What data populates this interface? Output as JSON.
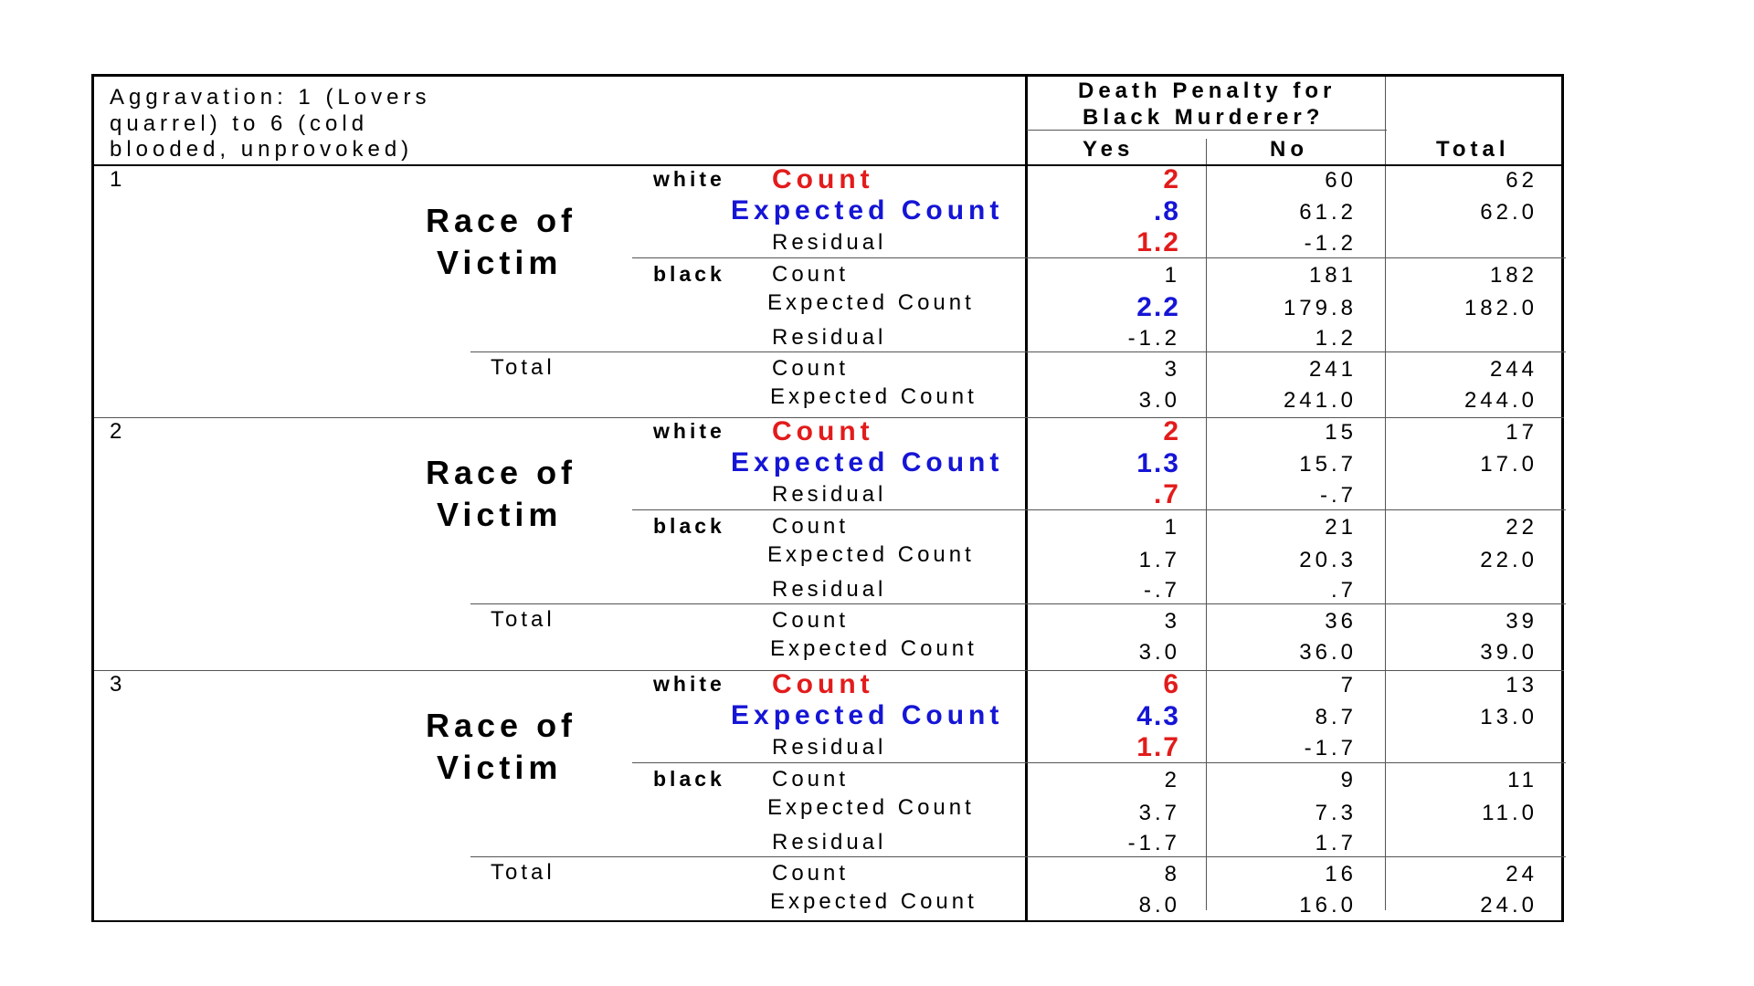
{
  "header": {
    "title_lines": [
      "Aggravation: 1 (Lovers",
      "quarrel) to 6 (cold",
      "blooded, unprovoked)"
    ],
    "group_lines": [
      "Death Penalty for",
      "Black Murderer?"
    ],
    "col_yes": "Yes",
    "col_no": "No",
    "col_total": "Total"
  },
  "labels": {
    "race_of": "Race of",
    "victim": "Victim",
    "white": "white",
    "black": "black",
    "total": "Total",
    "count": "Count",
    "expected_count": "Expected Count",
    "residual": "Residual"
  },
  "colors": {
    "highlight_red": "#e31b1b",
    "highlight_blue": "#1515d6"
  },
  "levels": [
    {
      "level": "1",
      "white": {
        "count": [
          "2",
          "60",
          "62"
        ],
        "expected": [
          ".8",
          "61.2",
          "62.0"
        ],
        "residual": [
          "1.2",
          "-1.2"
        ]
      },
      "black": {
        "count": [
          "1",
          "181",
          "182"
        ],
        "expected": [
          "2.2",
          "179.8",
          "182.0"
        ],
        "residual": [
          "-1.2",
          "1.2"
        ]
      },
      "total": {
        "count": [
          "3",
          "241",
          "244"
        ],
        "expected": [
          "3.0",
          "241.0",
          "244.0"
        ]
      }
    },
    {
      "level": "2",
      "white": {
        "count": [
          "2",
          "15",
          "17"
        ],
        "expected": [
          "1.3",
          "15.7",
          "17.0"
        ],
        "residual": [
          ".7",
          "-.7"
        ]
      },
      "black": {
        "count": [
          "1",
          "21",
          "22"
        ],
        "expected": [
          "1.7",
          "20.3",
          "22.0"
        ],
        "residual": [
          "-.7",
          ".7"
        ]
      },
      "total": {
        "count": [
          "3",
          "36",
          "39"
        ],
        "expected": [
          "3.0",
          "36.0",
          "39.0"
        ]
      }
    },
    {
      "level": "3",
      "white": {
        "count": [
          "6",
          "7",
          "13"
        ],
        "expected": [
          "4.3",
          "8.7",
          "13.0"
        ],
        "residual": [
          "1.7",
          "-1.7"
        ]
      },
      "black": {
        "count": [
          "2",
          "9",
          "11"
        ],
        "expected": [
          "3.7",
          "7.3",
          "11.0"
        ],
        "residual": [
          "-1.7",
          "1.7"
        ]
      },
      "total": {
        "count": [
          "8",
          "16",
          "24"
        ],
        "expected": [
          "8.0",
          "16.0",
          "24.0"
        ]
      }
    }
  ]
}
